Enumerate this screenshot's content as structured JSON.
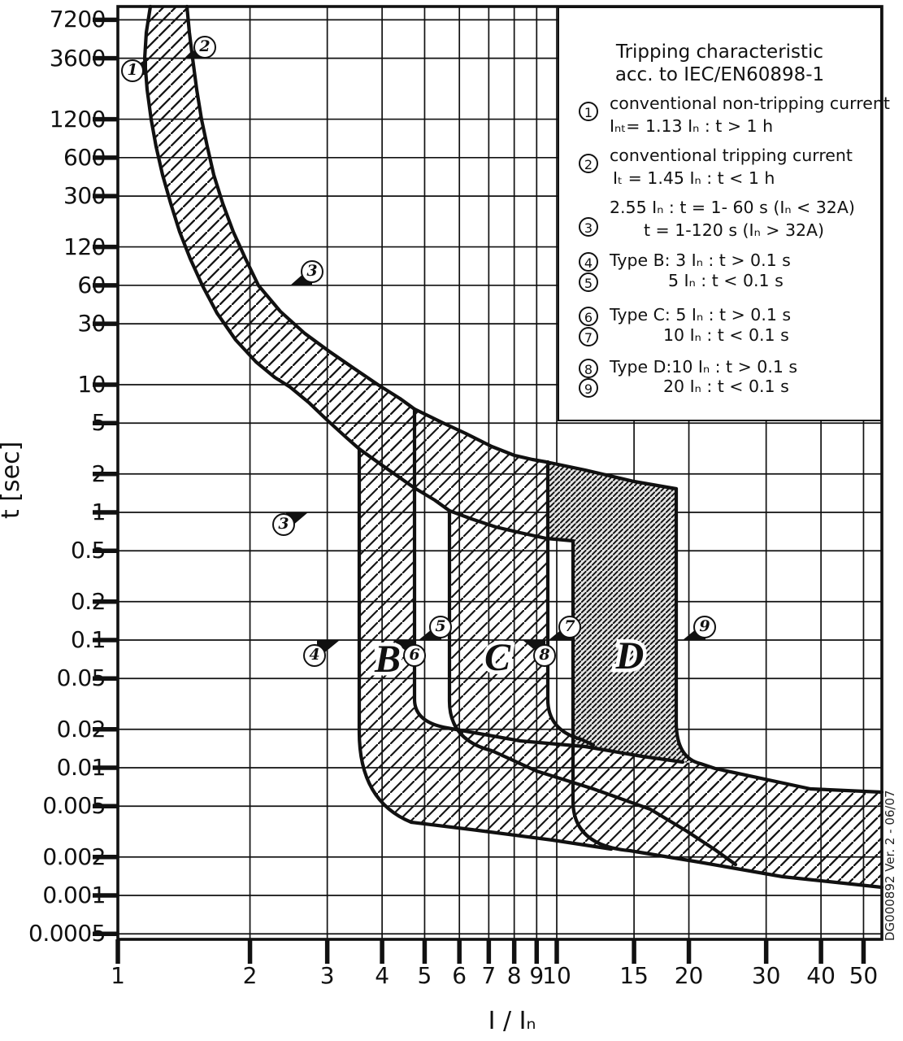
{
  "chart_data": {
    "type": "line",
    "title": "Tripping characteristic",
    "subtitle": "acc. to IEC/EN60898-1",
    "xlabel": "I / Iₙ",
    "ylabel": "t [sec]",
    "x_scale": "log",
    "y_scale": "log",
    "x_ticks": [
      "1",
      "2",
      "3",
      "4",
      "5",
      "6",
      "7",
      "8",
      "9",
      "10",
      "15",
      "20",
      "30",
      "40",
      "50"
    ],
    "y_ticks": [
      "7200",
      "3600",
      "1200",
      "600",
      "300",
      "120",
      "60",
      "30",
      "10",
      "5",
      "2",
      "1",
      "0.5",
      "0.2",
      "0.1",
      "0.05",
      "0.02",
      "0.01",
      "0.005",
      "0.002",
      "0.001",
      "0.0005"
    ],
    "x_range": [
      1,
      55
    ],
    "y_range": [
      0.0005,
      9000
    ],
    "grid": true,
    "series": [
      {
        "name": "thermal non-tripping limit",
        "definition": "Iₙₜ= 1.13 Iₙ, t > 1 h, vertical asymptote sweeping right to instantaneous region"
      },
      {
        "name": "thermal tripping limit",
        "definition": "Iₜ = 1.45 Iₙ, t < 1 h; 2.55 Iₙ at t = 1-60 s"
      }
    ],
    "bands": [
      {
        "label": "B",
        "instantaneous_min_multiple": 3,
        "instantaneous_max_multiple": 5,
        "hatch": "light"
      },
      {
        "label": "C",
        "instantaneous_min_multiple": 5,
        "instantaneous_max_multiple": 10,
        "hatch": "light"
      },
      {
        "label": "D",
        "instantaneous_min_multiple": 10,
        "instantaneous_max_multiple": 20,
        "hatch": "dark"
      }
    ],
    "thermal_limits": {
      "non_tripping_multiple": 1.13,
      "tripping_multiple": 1.45,
      "test_multiple": 2.55
    },
    "instantaneous_time_band_s": [
      0.004,
      0.02
    ]
  },
  "legend": {
    "title_line1": "Tripping characteristic",
    "title_line2": "acc. to IEC/EN60898-1",
    "items": [
      {
        "num": "1",
        "lines": [
          "conventional non-tripping current",
          "Iₙₜ= 1.13 Iₙ : t > 1 h"
        ]
      },
      {
        "num": "2",
        "lines": [
          "conventional tripping current",
          "Iₜ = 1.45 Iₙ : t < 1 h"
        ]
      },
      {
        "num": "3",
        "lines": [
          "2.55 Iₙ : t = 1- 60 s (Iₙ < 32A)",
          "t = 1-120 s (Iₙ > 32A)"
        ]
      },
      {
        "num": "4",
        "lines": [
          "Type B: 3 Iₙ : t > 0.1 s"
        ]
      },
      {
        "num": "5",
        "lines": [
          "5 Iₙ : t < 0.1 s"
        ]
      },
      {
        "num": "6",
        "lines": [
          "Type C: 5 Iₙ : t > 0.1 s"
        ]
      },
      {
        "num": "7",
        "lines": [
          "10 Iₙ : t < 0.1 s"
        ]
      },
      {
        "num": "8",
        "lines": [
          "Type D:10 Iₙ : t > 0.1 s"
        ]
      },
      {
        "num": "9",
        "lines": [
          "20 Iₙ : t < 0.1 s"
        ]
      }
    ]
  },
  "plot_markers": [
    "1",
    "2",
    "3",
    "3",
    "4",
    "5",
    "6",
    "7",
    "8",
    "9"
  ],
  "band_letters": [
    "B",
    "C",
    "D"
  ],
  "footer_note": "DG000892 Ver. 2 - 06/07",
  "colors": {
    "ink": "#111111",
    "background": "#ffffff",
    "dark_band_base": "#e4e4e4"
  }
}
